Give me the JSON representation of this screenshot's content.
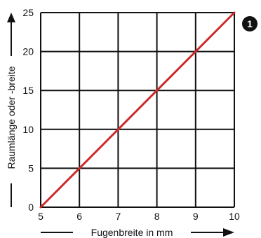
{
  "badge": "1",
  "colors": {
    "line": "#cc2a2a",
    "grid": "#111111",
    "text": "#111111"
  },
  "chart_data": {
    "type": "line",
    "title": "",
    "xlabel": "Fugenbreite in mm",
    "ylabel": "Raumlänge oder -breite",
    "xlim": [
      5,
      10
    ],
    "ylim": [
      0,
      25
    ],
    "x_ticks": [
      5,
      6,
      7,
      8,
      9,
      10
    ],
    "y_ticks": [
      0,
      5,
      10,
      15,
      20,
      25
    ],
    "grid": true,
    "series": [
      {
        "x": [
          5,
          10
        ],
        "y": [
          0,
          25
        ]
      }
    ]
  }
}
